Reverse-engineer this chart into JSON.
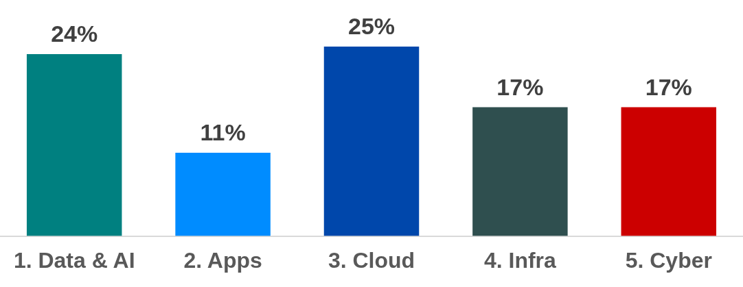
{
  "chart_data": {
    "type": "bar",
    "categories": [
      "1. Data & AI",
      "2. Apps",
      "3. Cloud",
      "4. Infra",
      "5. Cyber"
    ],
    "values": [
      24,
      11,
      25,
      17,
      17
    ],
    "colors": [
      "#008080",
      "#008cff",
      "#0047ab",
      "#2f4f4f",
      "#cc0000"
    ],
    "value_labels": [
      "24%",
      "11%",
      "25%",
      "17%",
      "17%"
    ],
    "grid": false,
    "legend": false
  }
}
